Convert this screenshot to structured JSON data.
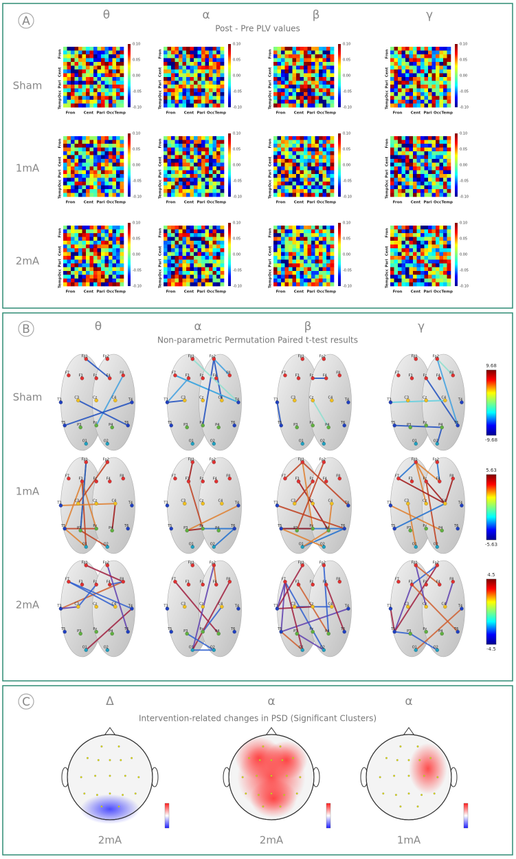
{
  "panels": [
    {
      "label": "A",
      "title": "Post - Pre PLV values",
      "columns": [
        "θ",
        "α",
        "β",
        "γ"
      ],
      "rows": [
        "Sham",
        "1mA",
        "2mA"
      ],
      "axis_labels": [
        "Fron",
        "Cent",
        "Pari",
        "Occ",
        "Temp"
      ],
      "colorbar_ticks": [
        "0.10",
        "0.05",
        "0.00",
        "-0.05",
        "-0.10"
      ]
    },
    {
      "label": "B",
      "title": "Non-parametric Permutation Paired t-test results",
      "columns": [
        "θ",
        "α",
        "β",
        "γ"
      ],
      "rows": [
        "Sham",
        "1mA",
        "2mA"
      ],
      "electrodes": [
        "Fp1",
        "Fp2",
        "F7",
        "F3",
        "Fz",
        "F4",
        "F8",
        "T3",
        "C3",
        "Cz",
        "C4",
        "T4",
        "T5",
        "P3",
        "Pz",
        "P4",
        "T6",
        "O1",
        "O2"
      ],
      "colorbars": [
        [
          "9.68",
          "-9.68"
        ],
        [
          "5.63",
          "-5.63"
        ],
        [
          "4.5",
          "-4.5"
        ]
      ]
    },
    {
      "label": "C",
      "title": "Intervention-related changes in PSD (Significant Clusters)",
      "columns": [
        "Δ",
        "α",
        "α"
      ],
      "conditions": [
        "2mA",
        "2mA",
        "1mA"
      ]
    }
  ]
}
